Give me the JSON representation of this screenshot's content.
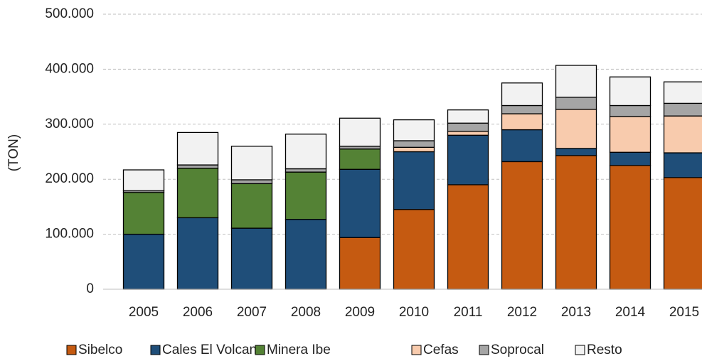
{
  "chart_data": {
    "type": "stacked_bar",
    "y_label": "(TON)",
    "categories": [
      "2005",
      "2006",
      "2007",
      "2008",
      "2009",
      "2010",
      "2011",
      "2012",
      "2013",
      "2014",
      "2015"
    ],
    "series": [
      {
        "name": "Sibelco",
        "color": "#c55a11",
        "values": [
          0,
          0,
          0,
          0,
          94000,
          145000,
          190000,
          232000,
          243000,
          225000,
          203000
        ]
      },
      {
        "name": "Cales El Volcan",
        "color": "#1f4e79",
        "values": [
          100000,
          130000,
          111000,
          127000,
          124000,
          105000,
          90000,
          58000,
          13000,
          24000,
          45000
        ]
      },
      {
        "name": "Minera Ibe",
        "color": "#548235",
        "values": [
          76000,
          90000,
          81000,
          86000,
          37000,
          0,
          0,
          0,
          0,
          0,
          0
        ]
      },
      {
        "name": "Cefas",
        "color": "#f8cbad",
        "values": [
          0,
          0,
          0,
          0,
          0,
          8000,
          7000,
          29000,
          71000,
          65000,
          67000
        ]
      },
      {
        "name": "Soprocal",
        "color": "#a5a5a5",
        "values": [
          3000,
          6000,
          7000,
          6000,
          5000,
          12000,
          15000,
          15000,
          22000,
          20000,
          23000
        ]
      },
      {
        "name": "Resto",
        "color": "#f2f2f2",
        "values": [
          38000,
          59000,
          61000,
          63000,
          51000,
          38000,
          24000,
          41000,
          58000,
          52000,
          39000
        ]
      }
    ],
    "ylim": [
      0,
      500000
    ],
    "yticks": [
      0,
      {
        "value": 100000,
        "label": "100.000"
      },
      {
        "value": 200000,
        "label": "200.000"
      },
      {
        "value": 300000,
        "label": "300.000"
      },
      {
        "value": 400000,
        "label": "400.000"
      },
      {
        "value": 500000,
        "label": "500.000"
      }
    ],
    "grid": true,
    "legend": "bottom"
  }
}
